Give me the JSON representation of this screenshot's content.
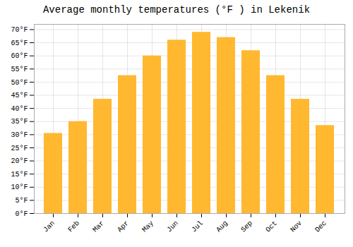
{
  "chart_data": {
    "type": "bar",
    "title": "Average monthly temperatures (°F ) in Lekenik",
    "categories": [
      "Jan",
      "Feb",
      "Mar",
      "Apr",
      "May",
      "Jun",
      "Jul",
      "Aug",
      "Sep",
      "Oct",
      "Nov",
      "Dec"
    ],
    "values": [
      30.5,
      35.0,
      43.5,
      52.5,
      60.0,
      66.0,
      69.0,
      67.0,
      62.0,
      52.5,
      43.5,
      33.5
    ],
    "color": "#FFB830",
    "ylim": [
      0,
      72
    ],
    "yticks": [
      {
        "value": 0,
        "label": "0°F"
      },
      {
        "value": 5,
        "label": "5°F"
      },
      {
        "value": 10,
        "label": "10°F"
      },
      {
        "value": 15,
        "label": "15°F"
      },
      {
        "value": 20,
        "label": "20°F"
      },
      {
        "value": 25,
        "label": "25°F"
      },
      {
        "value": 30,
        "label": "30°F"
      },
      {
        "value": 35,
        "label": "35°F"
      },
      {
        "value": 40,
        "label": "40°F"
      },
      {
        "value": 45,
        "label": "45°F"
      },
      {
        "value": 50,
        "label": "50°F"
      },
      {
        "value": 55,
        "label": "55°F"
      },
      {
        "value": 60,
        "label": "60°F"
      },
      {
        "value": 65,
        "label": "65°F"
      },
      {
        "value": 70,
        "label": "70°F"
      }
    ],
    "grid": true
  }
}
